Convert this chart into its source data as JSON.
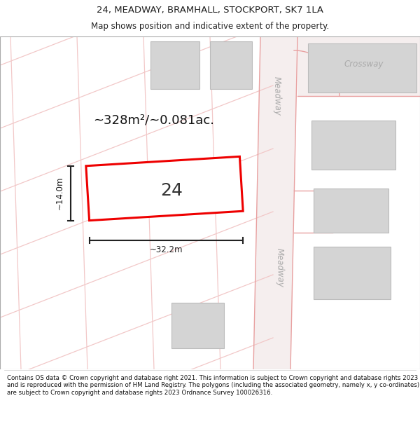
{
  "title": "24, MEADWAY, BRAMHALL, STOCKPORT, SK7 1LA",
  "subtitle": "Map shows position and indicative extent of the property.",
  "footer": "Contains OS data © Crown copyright and database right 2021. This information is subject to Crown copyright and database rights 2023 and is reproduced with the permission of HM Land Registry. The polygons (including the associated geometry, namely x, y co-ordinates) are subject to Crown copyright and database rights 2023 Ordnance Survey 100026316.",
  "area_text": "~328m²/~0.081ac.",
  "width_label": "~32.2m",
  "height_label": "~14.0m",
  "plot_number": "24",
  "bg_color": "#ffffff",
  "map_bg": "#faf6f6",
  "road_stripe_color": "#f2c8c8",
  "road_line_color": "#e8a0a0",
  "building_fill": "#d4d4d4",
  "building_edge": "#bbbbbb",
  "plot_fill": "#ffffff",
  "plot_edge": "#ee0000",
  "dim_color": "#222222",
  "text_color": "#222222",
  "street_label_color": "#aaaaaa",
  "title_fontsize": 9.5,
  "subtitle_fontsize": 8.5,
  "footer_fontsize": 6.2,
  "area_fontsize": 13,
  "plot_num_fontsize": 18,
  "dim_fontsize": 8.5
}
